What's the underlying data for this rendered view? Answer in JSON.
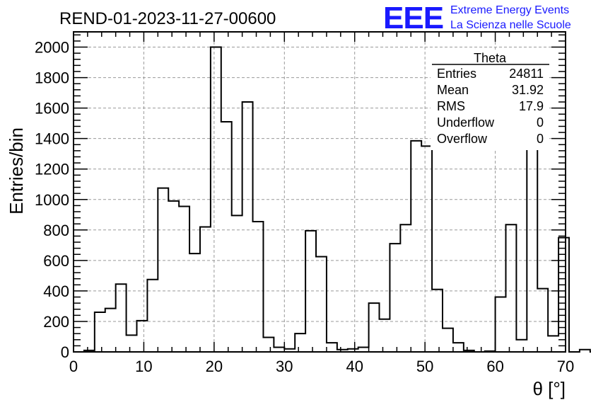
{
  "chart_data": {
    "type": "histogram",
    "title": "REND-01-2023-11-27-00600",
    "xlabel": "θ [°]",
    "ylabel": "Entries/bin",
    "xlim": [
      0,
      70
    ],
    "ylim": [
      0,
      2100
    ],
    "xticks": [
      0,
      10,
      20,
      30,
      40,
      50,
      60,
      70
    ],
    "yticks": [
      0,
      200,
      400,
      600,
      800,
      1000,
      1200,
      1400,
      1600,
      1800,
      2000
    ],
    "grid": true,
    "bin_edges_start": 0,
    "bin_width": 1.5,
    "values": [
      0,
      10,
      260,
      285,
      445,
      110,
      205,
      475,
      1075,
      990,
      955,
      645,
      820,
      2000,
      1510,
      895,
      1640,
      855,
      95,
      30,
      20,
      120,
      795,
      625,
      60,
      15,
      20,
      30,
      320,
      215,
      710,
      835,
      1385,
      1350,
      410,
      155,
      60,
      10,
      0,
      5,
      360,
      835,
      80,
      1690,
      415,
      105,
      750,
      0,
      15,
      0
    ],
    "stats": {
      "name": "Theta",
      "rows": [
        {
          "label": "Entries",
          "value": "24811"
        },
        {
          "label": "Mean",
          "value": "31.92"
        },
        {
          "label": "RMS",
          "value": "17.9"
        },
        {
          "label": "Underflow",
          "value": "0"
        },
        {
          "label": "Overflow",
          "value": "0"
        }
      ]
    }
  },
  "logo": {
    "mark": "EEE",
    "line1": "Extreme Energy Events",
    "line2": "La Scienza nelle Scuole",
    "color": "#1a1aff"
  }
}
